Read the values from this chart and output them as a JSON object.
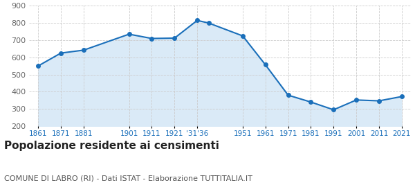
{
  "years": [
    1861,
    1871,
    1881,
    1901,
    1911,
    1921,
    1931,
    1936,
    1951,
    1961,
    1971,
    1981,
    1991,
    2001,
    2011,
    2021
  ],
  "population": [
    550,
    625,
    642,
    735,
    710,
    712,
    815,
    800,
    725,
    557,
    380,
    340,
    295,
    352,
    347,
    372
  ],
  "line_color": "#1a6fba",
  "fill_color": "#daeaf7",
  "marker": "o",
  "marker_size": 4,
  "ylim": [
    200,
    900
  ],
  "yticks": [
    200,
    300,
    400,
    500,
    600,
    700,
    800,
    900
  ],
  "x_tick_positions": [
    1861,
    1871,
    1881,
    1901,
    1911,
    1921,
    1931,
    1951,
    1961,
    1971,
    1981,
    1991,
    2001,
    2011,
    2021
  ],
  "x_tick_labels": [
    "1861",
    "1871",
    "1881",
    "1901",
    "1911",
    "1921",
    "'31'36",
    "1951",
    "1961",
    "1971",
    "1981",
    "1991",
    "2001",
    "2011",
    "2021"
  ],
  "title": "Popolazione residente ai censimenti",
  "subtitle": "COMUNE DI LABRO (RI) - Dati ISTAT - Elaborazione TUTTITALIA.IT",
  "title_fontsize": 11,
  "subtitle_fontsize": 8,
  "title_color": "#222222",
  "subtitle_color": "#555555",
  "tick_color": "#1a6fba",
  "ytick_color": "#666666",
  "background_color": "#ffffff",
  "grid_color": "#cccccc",
  "xlim_left": 1857,
  "xlim_right": 2025
}
